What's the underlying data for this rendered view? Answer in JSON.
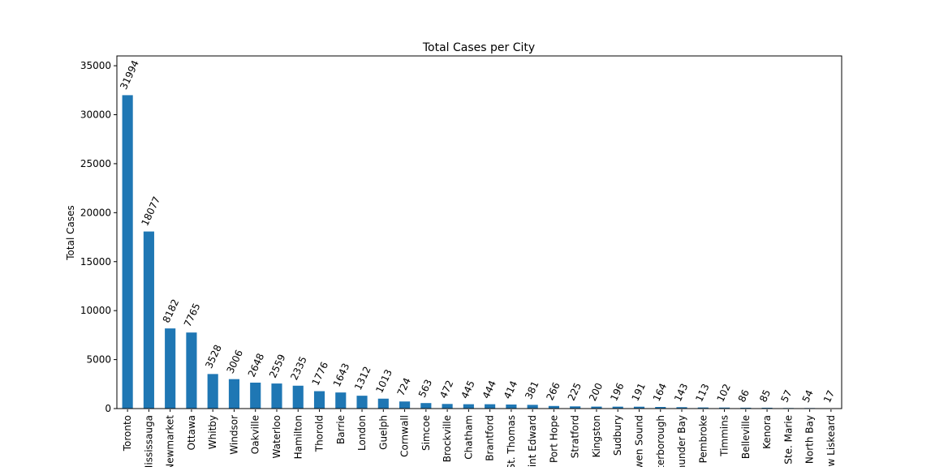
{
  "chart_data": {
    "type": "bar",
    "title": "Total Cases per City",
    "xlabel": "",
    "ylabel": "Total Cases",
    "ylim": [
      0,
      36000
    ],
    "yticks": [
      0,
      5000,
      10000,
      15000,
      20000,
      25000,
      30000,
      35000
    ],
    "grid": false,
    "bar_color": "#1f77b4",
    "categories": [
      "Toronto",
      "Mississauga",
      "Newmarket",
      "Ottawa",
      "Whitby",
      "Windsor",
      "Oakville",
      "Waterloo",
      "Hamilton",
      "Thorold",
      "Barrie",
      "London",
      "Guelph",
      "Cornwall",
      "Simcoe",
      "Brockville",
      "Chatham",
      "Brantford",
      "St. Thomas",
      "Point Edward",
      "Port Hope",
      "Stratford",
      "Kingston",
      "Sudbury",
      "Owen Sound",
      "Peterborough",
      "Thunder Bay",
      "Pembroke",
      "Timmins",
      "Belleville",
      "Kenora",
      "Sault Ste. Marie",
      "North Bay",
      "New Liskeard"
    ],
    "values": [
      31994,
      18077,
      8182,
      7765,
      3528,
      3006,
      2648,
      2559,
      2335,
      1776,
      1643,
      1312,
      1013,
      724,
      563,
      472,
      445,
      444,
      414,
      381,
      266,
      225,
      200,
      196,
      191,
      164,
      143,
      113,
      102,
      86,
      85,
      57,
      54,
      17
    ]
  }
}
